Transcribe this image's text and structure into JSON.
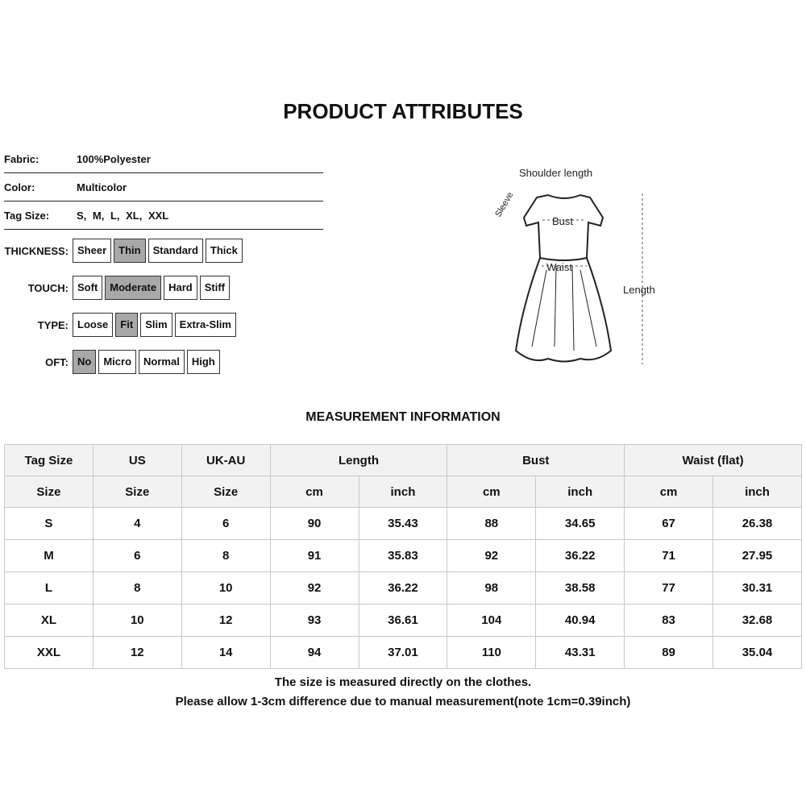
{
  "title": "PRODUCT ATTRIBUTES",
  "attributes": [
    {
      "label": "Fabric:",
      "value": "100%Polyester"
    },
    {
      "label": "Color:",
      "value": "Multicolor"
    },
    {
      "label": "Tag Size:",
      "value": "S, M, L, XL, XXL"
    }
  ],
  "option_groups": [
    {
      "label": "THICKNESS:",
      "options": [
        "Sheer",
        "Thin",
        "Standard",
        "Thick"
      ],
      "selected": "Thin"
    },
    {
      "label": "TOUCH:",
      "options": [
        "Soft",
        "Moderate",
        "Hard",
        "Stiff"
      ],
      "selected": "Moderate"
    },
    {
      "label": "TYPE:",
      "options": [
        "Loose",
        "Fit",
        "Slim",
        "Extra-Slim"
      ],
      "selected": "Fit"
    },
    {
      "label": "OFT:",
      "options": [
        "No",
        "Micro",
        "Normal",
        "High"
      ],
      "selected": "No"
    }
  ],
  "diagram": {
    "shoulder": "Shoulder length",
    "sleeve": "Sleeve",
    "bust": "Bust",
    "waist": "Waist",
    "length": "Length"
  },
  "measurement_title": "MEASUREMENT INFORMATION",
  "table": {
    "header1": [
      "Tag Size",
      "US",
      "UK-AU",
      "Length",
      "Bust",
      "Waist  (flat)"
    ],
    "header2": [
      "Size",
      "Size",
      "Size",
      "cm",
      "inch",
      "cm",
      "inch",
      "cm",
      "inch"
    ],
    "rows": [
      [
        "S",
        "4",
        "6",
        "90",
        "35.43",
        "88",
        "34.65",
        "67",
        "26.38"
      ],
      [
        "M",
        "6",
        "8",
        "91",
        "35.83",
        "92",
        "36.22",
        "71",
        "27.95"
      ],
      [
        "L",
        "8",
        "10",
        "92",
        "36.22",
        "98",
        "38.58",
        "77",
        "30.31"
      ],
      [
        "XL",
        "10",
        "12",
        "93",
        "36.61",
        "104",
        "40.94",
        "83",
        "32.68"
      ],
      [
        "XXL",
        "12",
        "14",
        "94",
        "37.01",
        "110",
        "43.31",
        "89",
        "35.04"
      ]
    ]
  },
  "notes": [
    "The size is measured directly on the clothes.",
    "Please allow 1-3cm difference due to manual measurement(note 1cm=0.39inch)"
  ],
  "colors": {
    "selected_option": "#a8a8a8",
    "table_header": "#f2f2f2",
    "table_border": "#c8c8c8"
  }
}
